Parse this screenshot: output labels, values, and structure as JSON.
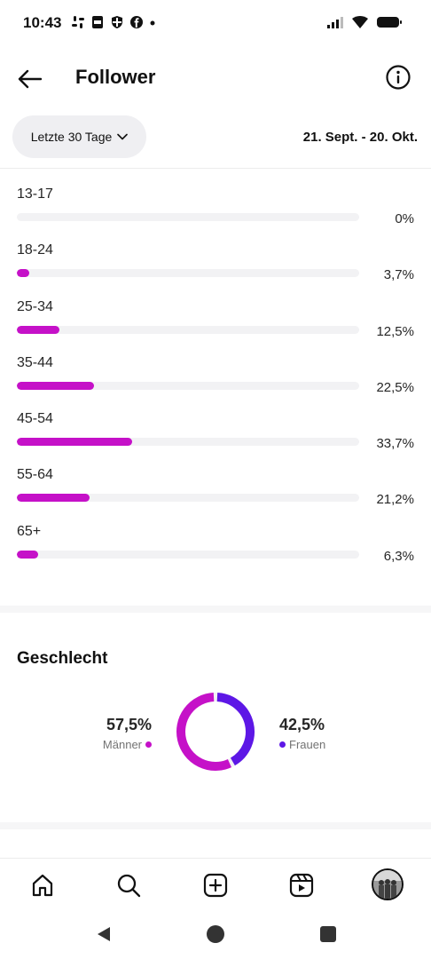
{
  "status_bar": {
    "time": "10:43",
    "left_icons": [
      "slack-icon",
      "pdf-icon",
      "shield-icon",
      "facebook-icon",
      "dot-icon"
    ],
    "right_icons": [
      "signal-icon",
      "wifi-icon",
      "battery-icon"
    ]
  },
  "header": {
    "title": "Follower"
  },
  "filter": {
    "range_label": "Letzte 30 Tage",
    "date_range": "21. Sept. - 20. Okt."
  },
  "age_groups": [
    {
      "label": "13-17",
      "percent_text": "0%",
      "value": 0.0
    },
    {
      "label": "18-24",
      "percent_text": "3,7%",
      "value": 3.7
    },
    {
      "label": "25-34",
      "percent_text": "12,5%",
      "value": 12.5
    },
    {
      "label": "35-44",
      "percent_text": "22,5%",
      "value": 22.5
    },
    {
      "label": "45-54",
      "percent_text": "33,7%",
      "value": 33.7
    },
    {
      "label": "55-64",
      "percent_text": "21,2%",
      "value": 21.2
    },
    {
      "label": "65+",
      "percent_text": "6,3%",
      "value": 6.3
    }
  ],
  "gender": {
    "title": "Geschlecht",
    "men": {
      "value_text": "57,5%",
      "label": "Männer",
      "value": 57.5,
      "color": "#c511c8"
    },
    "women": {
      "value_text": "42,5%",
      "label": "Frauen",
      "value": 42.5,
      "color": "#5d17e6"
    }
  },
  "colors": {
    "accent": "#c511c8",
    "secondary": "#5d17e6",
    "track": "#f2f2f4"
  },
  "bottom_nav": [
    "home-icon",
    "search-icon",
    "create-icon",
    "reels-icon",
    "profile-avatar"
  ]
}
